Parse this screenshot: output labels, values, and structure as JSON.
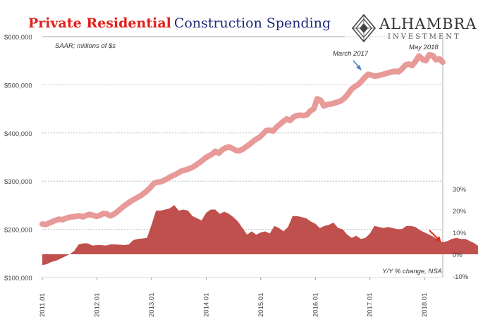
{
  "title": {
    "part1": "Private Residential",
    "part2": "Construction Spending"
  },
  "brand": {
    "name": "ALHAMBRA",
    "sub": "INVESTMENT",
    "logo_icon": "diamond-lattice-icon"
  },
  "annotations": {
    "units": "SAAR; millions of $s",
    "secondary": "Y/Y % change, NSA",
    "march_2017": "March 2017",
    "may_2018": "May 2018"
  },
  "colors": {
    "level": "#e79a98",
    "yoy": "#c0504d",
    "arrow_blue": "#4f81bd",
    "arrow_red": "#e02a1e",
    "grid": "#b0b0b0"
  },
  "chart_data": {
    "type": "area",
    "x_ticks": [
      "2011.01",
      "2012.01",
      "2013.01",
      "2014.01",
      "2015.01",
      "2016.01",
      "2017.01",
      "2018.01"
    ],
    "x_start": "2011.01",
    "x_end": "2018.05",
    "y_left": {
      "ticks": [
        "$100,000",
        "$200,000",
        "$300,000",
        "$400,000",
        "$500,000",
        "$600,000"
      ],
      "range": [
        100000,
        600000
      ]
    },
    "y_right": {
      "ticks": [
        "-10%",
        "0%",
        "10%",
        "20%",
        "30%"
      ],
      "range": [
        -10,
        30
      ]
    },
    "series": [
      {
        "kind": "line",
        "axis": "left",
        "values": [
          211000,
          210000,
          213000,
          216000,
          219000,
          221000,
          220000,
          223000,
          225000,
          226000,
          227000,
          228000,
          226000,
          229000,
          231000,
          229000,
          227000,
          229000,
          233000,
          232000,
          228000,
          231000,
          236000,
          242000,
          248000,
          253000,
          258000,
          262000,
          266000,
          270000,
          275000,
          281000,
          288000,
          296000,
          298000,
          299000,
          302000,
          306000,
          310000,
          313000,
          317000,
          321000,
          323000,
          325000,
          328000,
          332000,
          337000,
          342000,
          348000,
          352000,
          356000,
          362000,
          358000,
          365000,
          369000,
          371000,
          368000,
          364000,
          363000,
          366000,
          371000,
          376000,
          382000,
          387000,
          391000,
          398000,
          405000,
          406000,
          404000,
          412000,
          418000,
          424000,
          429000,
          426000,
          433000,
          436000,
          437000,
          436000,
          438000,
          446000,
          450000,
          471000,
          468000,
          456000,
          459000,
          460000,
          462000,
          464000,
          467000,
          472000,
          480000,
          490000,
          496000,
          500000,
          507000,
          515000,
          522000,
          520000,
          518000,
          519000,
          521000,
          523000,
          525000,
          527000,
          528000,
          527000,
          533000,
          541000,
          543000,
          540000,
          549000,
          560000,
          553000,
          550000,
          562000,
          561000,
          552000,
          554000,
          547000
        ],
        "note": "monthly, approx."
      },
      {
        "kind": "area",
        "axis": "right",
        "values": [
          -5.0,
          -4.5,
          -3.5,
          -3.0,
          -2.0,
          -1.0,
          0.0,
          1.5,
          4.5,
          5.0,
          5.0,
          4.0,
          4.2,
          4.2,
          4.0,
          4.5,
          4.5,
          4.4,
          4.2,
          4.5,
          6.5,
          7.0,
          7.2,
          7.5,
          13.5,
          20.0,
          20.0,
          20.5,
          21.0,
          22.5,
          20.0,
          20.5,
          20.0,
          17.5,
          16.5,
          15.5,
          19.0,
          20.5,
          20.5,
          18.5,
          19.5,
          18.5,
          17.0,
          15.0,
          12.0,
          9.0,
          10.5,
          9.0,
          10.0,
          10.5,
          9.5,
          13.0,
          12.0,
          10.5,
          12.5,
          17.5,
          17.5,
          17.0,
          16.5,
          15.0,
          14.0,
          12.0,
          13.0,
          13.5,
          14.5,
          12.0,
          11.5,
          9.0,
          7.5,
          8.5,
          7.0,
          7.5,
          9.5,
          13.0,
          12.5,
          12.0,
          12.5,
          12.0,
          11.5,
          11.5,
          13.0,
          13.0,
          12.5,
          11.0,
          10.0,
          9.0,
          8.0,
          6.5,
          5.5,
          6.0,
          7.0,
          7.5,
          7.0,
          7.0,
          6.0,
          5.0,
          3.5,
          6.0,
          3.0,
          6.0,
          6.5
        ],
        "note": "monthly, approx."
      }
    ]
  }
}
